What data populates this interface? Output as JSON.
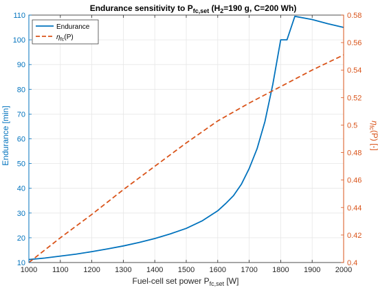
{
  "chart_data": {
    "type": "line",
    "title": {
      "prefix": "Endurance sensitivity to P",
      "prefix_sub": "fc,set",
      "mid": "  (H",
      "mid_sub": "2",
      "suffix": "=190 g, C=200 Wh)"
    },
    "xlabel": {
      "prefix": "Fuel-cell set power P",
      "sub": "fc,set",
      "suffix": " [W]"
    },
    "ylabel_left": "Endurance [min]",
    "ylabel_right": {
      "base": "η",
      "sub": "fc",
      "suffix": "(P) [-]"
    },
    "xlim": [
      1000,
      2000
    ],
    "ylim_left": [
      10,
      110
    ],
    "ylim_right": [
      0.4,
      0.58
    ],
    "xticks": [
      "1000",
      "1100",
      "1200",
      "1300",
      "1400",
      "1500",
      "1600",
      "1700",
      "1800",
      "1900",
      "2000"
    ],
    "yticks_left": [
      "10",
      "20",
      "30",
      "40",
      "50",
      "60",
      "70",
      "80",
      "90",
      "100",
      "110"
    ],
    "yticks_right": [
      "0.4",
      "0.42",
      "0.44",
      "0.46",
      "0.48",
      "0.5",
      "0.52",
      "0.54",
      "0.56",
      "0.58"
    ],
    "grid": true,
    "legend": {
      "placement": "top-left",
      "entries": [
        {
          "label": "Endurance"
        },
        {
          "label": "η",
          "sub": "fc",
          "suffix": "(P)"
        }
      ]
    },
    "colors": {
      "left_axis": "#0072BD",
      "right_axis": "#D95319",
      "grid": "#e6e6e6",
      "axis": "#262626"
    },
    "series": [
      {
        "name": "Endurance",
        "axis": "left",
        "style": "solid",
        "x": [
          1000,
          1050,
          1100,
          1150,
          1200,
          1250,
          1300,
          1350,
          1400,
          1450,
          1500,
          1550,
          1600,
          1625,
          1650,
          1675,
          1700,
          1725,
          1750,
          1775,
          1800,
          1820,
          1845,
          1900,
          1950,
          2000
        ],
        "y": [
          11.2,
          11.8,
          12.6,
          13.4,
          14.4,
          15.5,
          16.7,
          18.1,
          19.7,
          21.6,
          23.8,
          26.8,
          30.9,
          33.8,
          37.0,
          41.6,
          48.0,
          56.0,
          67.0,
          82.0,
          100.0,
          100.0,
          109.5,
          108.2,
          106.5,
          105.0
        ]
      },
      {
        "name": "η_fc(P)",
        "axis": "right",
        "style": "dashed",
        "x": [
          1000,
          1100,
          1200,
          1300,
          1400,
          1500,
          1600,
          1700,
          1800,
          1900,
          2000
        ],
        "y": [
          0.4,
          0.418,
          0.435,
          0.453,
          0.47,
          0.487,
          0.503,
          0.516,
          0.528,
          0.54,
          0.551
        ]
      }
    ]
  }
}
